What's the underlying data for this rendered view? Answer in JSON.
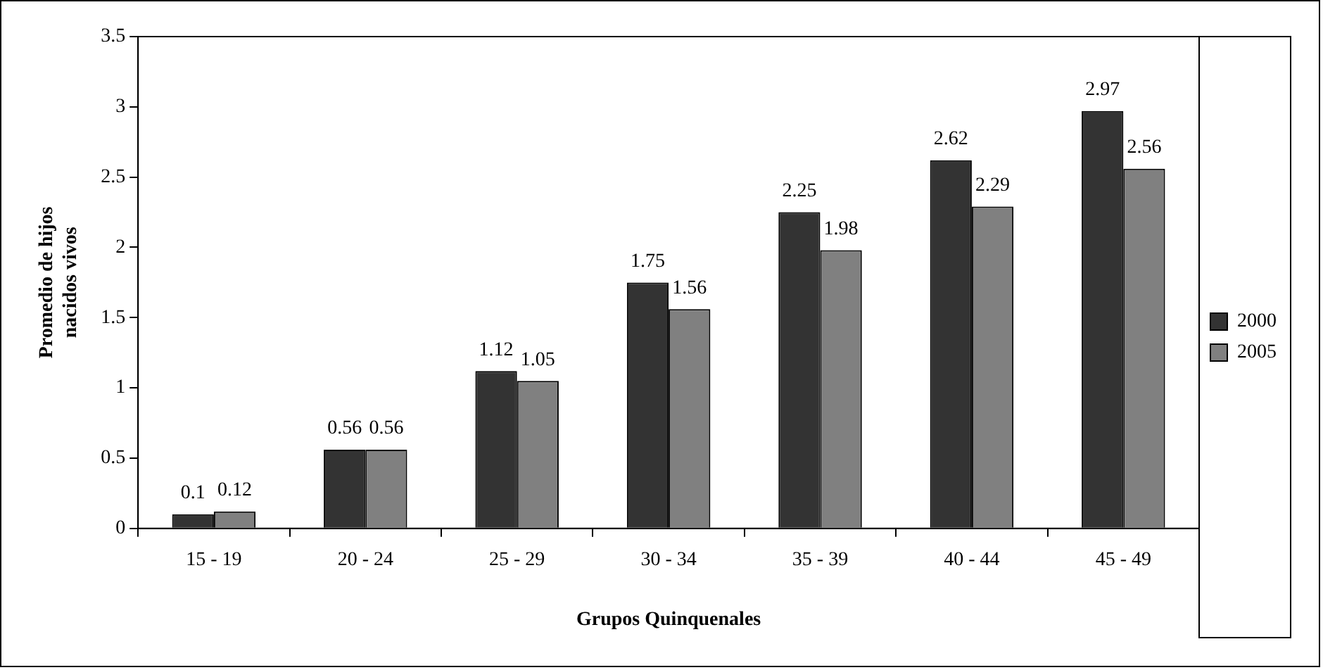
{
  "chart_data": {
    "type": "bar",
    "xlabel": "Grupos Quinquenales",
    "ylabel": "Promedio de hijos nacidos vivos",
    "categories": [
      "15 - 19",
      "20 - 24",
      "25 - 29",
      "30 - 34",
      "35 - 39",
      "40 - 44",
      "45 - 49"
    ],
    "series": [
      {
        "name": "2000",
        "color": "#333333",
        "values": [
          0.1,
          0.56,
          1.12,
          1.75,
          2.25,
          2.62,
          2.97
        ]
      },
      {
        "name": "2005",
        "color": "#808080",
        "values": [
          0.12,
          0.56,
          1.05,
          1.56,
          1.98,
          2.29,
          2.56
        ]
      }
    ],
    "ylim": [
      0,
      3.5
    ],
    "yticks": [
      0,
      0.5,
      1,
      1.5,
      2,
      2.5,
      3,
      3.5
    ],
    "data_labels": true,
    "legend": "right"
  }
}
